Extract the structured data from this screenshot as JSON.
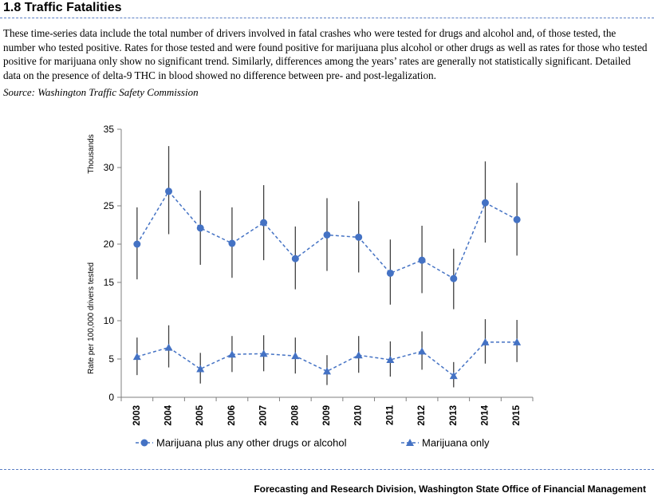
{
  "page": {
    "title": "1.8 Traffic Fatalities",
    "body": "These time-series data include the total number of drivers involved in fatal crashes who were tested for drugs and alcohol and, of those tested, the number who tested positive. Rates for those tested and were found positive for marijuana plus alcohol or other drugs as well as rates for those who tested positive for marijuana only show no significant trend. Similarly, differences among the years’ rates are generally not statistically significant. Detailed data on the presence of delta-9 THC in blood showed no difference between pre- and post-legalization.",
    "source": "Source: Washington Traffic Safety Commission",
    "footer": "Forecasting and Research Division, Washington State Office of Financial Management"
  },
  "colors": {
    "series": "#4472c4",
    "error_bar": "#404040",
    "rule": "#5b7fc5"
  },
  "chart_data": {
    "type": "line",
    "title": "",
    "ylabel": "Rate per 100,000 drivers tested",
    "units_label": "Thousands",
    "ylim": [
      0,
      35
    ],
    "yticks": [
      0,
      5,
      10,
      15,
      20,
      25,
      30,
      35
    ],
    "grid": false,
    "legend_position": "bottom",
    "categories": [
      "2003",
      "2004",
      "2005",
      "2006",
      "2007",
      "2008",
      "2009",
      "2010",
      "2011",
      "2012",
      "2013",
      "2014",
      "2015"
    ],
    "series": [
      {
        "name": "Marijuana plus any other drugs or alcohol",
        "marker": "circle",
        "line": "dashed",
        "values": [
          20.0,
          26.9,
          22.1,
          20.1,
          22.8,
          18.1,
          21.2,
          20.9,
          16.2,
          17.9,
          15.5,
          25.4,
          23.2
        ],
        "upper": [
          24.8,
          32.8,
          27.0,
          24.8,
          27.7,
          22.3,
          26.0,
          25.6,
          20.6,
          22.4,
          19.4,
          30.8,
          28.0
        ],
        "lower": [
          15.4,
          21.3,
          17.3,
          15.6,
          17.9,
          14.1,
          16.5,
          16.3,
          12.1,
          13.6,
          11.5,
          20.2,
          18.5
        ]
      },
      {
        "name": "Marijuana only",
        "marker": "triangle",
        "line": "dashed",
        "values": [
          5.3,
          6.5,
          3.7,
          5.6,
          5.7,
          5.4,
          3.4,
          5.5,
          4.9,
          6.0,
          2.8,
          7.2,
          7.2
        ],
        "upper": [
          7.8,
          9.4,
          5.8,
          8.0,
          8.1,
          7.8,
          5.5,
          8.0,
          7.3,
          8.6,
          4.6,
          10.2,
          10.1
        ],
        "lower": [
          2.9,
          3.9,
          1.8,
          3.3,
          3.4,
          3.1,
          1.6,
          3.2,
          2.7,
          3.6,
          1.3,
          4.4,
          4.6
        ]
      }
    ]
  }
}
